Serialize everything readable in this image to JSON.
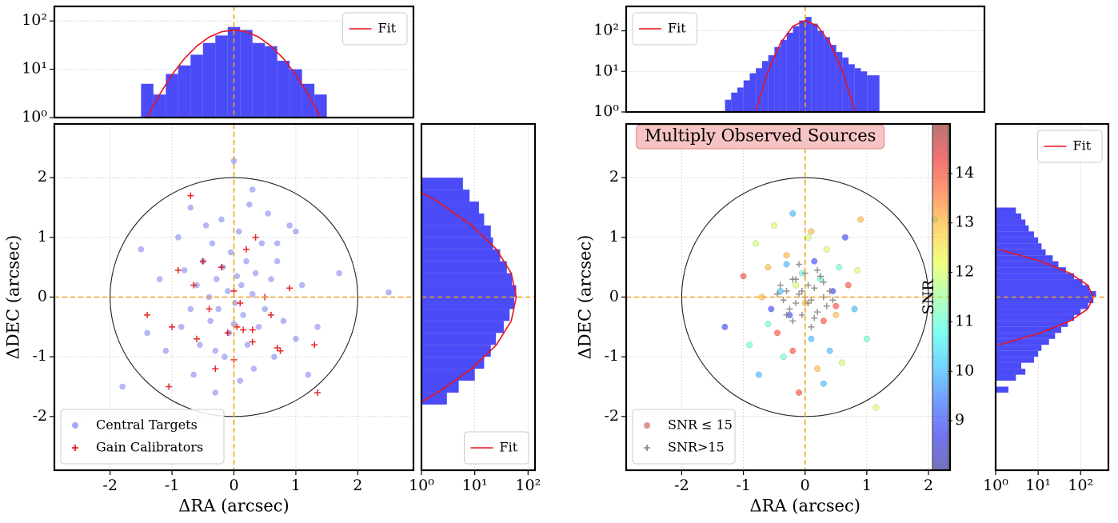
{
  "chart_data": [
    {
      "type": "histogram",
      "orientation": "vertical",
      "color": "#4b4bf7",
      "bins": [
        -1.5,
        -1.3,
        -1.1,
        -0.9,
        -0.7,
        -0.5,
        -0.3,
        -0.1,
        0.1,
        0.3,
        0.5,
        0.7,
        0.9,
        1.1,
        1.3,
        1.5
      ],
      "values": [
        5,
        3,
        8,
        12,
        20,
        35,
        50,
        75,
        65,
        35,
        30,
        15,
        10,
        5,
        3
      ],
      "series": [
        {
          "name": "Fit",
          "color": "#e8141c",
          "x": [
            -1.4,
            -1.2,
            -1.0,
            -0.8,
            -0.6,
            -0.4,
            -0.2,
            0,
            0.2,
            0.4,
            0.6,
            0.8,
            1.0,
            1.2,
            1.4
          ],
          "values": [
            1.0,
            3.0,
            7.7,
            16.6,
            30.2,
            46.3,
            59.7,
            65,
            59.7,
            46.3,
            30.2,
            16.6,
            7.7,
            3.0,
            1.0
          ]
        }
      ],
      "xlim": [
        -2.9,
        2.9
      ],
      "ylim": [
        1,
        200
      ],
      "y_log": true,
      "yticks": [
        {
          "value": 1,
          "label": "10⁰"
        },
        {
          "value": 10,
          "label": "10¹"
        },
        {
          "value": 100,
          "label": "10²"
        }
      ],
      "grid": true,
      "zero_lines": true,
      "legend": "upper right"
    },
    {
      "type": "scatter",
      "xlabel": "ΔRA (arcsec)",
      "ylabel": "ΔDEC (arcsec)",
      "series": [
        {
          "name": "Central Targets",
          "color": "#6b70ee",
          "marker": "o",
          "x": [
            -1.8,
            -1.5,
            -1.2,
            -1.1,
            -0.9,
            -0.85,
            -0.8,
            -0.7,
            -0.65,
            -0.6,
            -0.55,
            -0.5,
            -0.45,
            -0.4,
            -0.38,
            -0.35,
            -0.3,
            -0.28,
            -0.25,
            -0.2,
            -0.18,
            -0.15,
            -0.1,
            -0.08,
            -0.05,
            0,
            0.02,
            0.05,
            0.08,
            0.1,
            0.12,
            0.15,
            0.2,
            0.22,
            0.25,
            0.3,
            0.32,
            0.35,
            0.4,
            0.45,
            0.5,
            0.55,
            0.6,
            0.65,
            0.7,
            0.8,
            0.9,
            1.0,
            1.1,
            1.2,
            1.35,
            1.7,
            2.5,
            -0.3,
            0.3,
            -0.7,
            0.7,
            -1.4,
            1.0,
            0.0
          ],
          "values": [
            -1.5,
            0.8,
            0.3,
            -0.9,
            1.0,
            -0.5,
            0.45,
            1.5,
            -1.3,
            0.2,
            -0.8,
            0.6,
            1.2,
            0.0,
            -0.4,
            0.9,
            -1.6,
            0.3,
            -0.2,
            1.3,
            0.5,
            -1.0,
            0.1,
            -0.6,
            0.75,
            2.28,
            -0.1,
            0.35,
            1.1,
            -1.4,
            0.2,
            -0.3,
            0.6,
            -0.8,
            1.55,
            0.05,
            -1.2,
            0.4,
            -0.5,
            0.9,
            -0.2,
            1.4,
            0.3,
            -1.0,
            0.6,
            -0.4,
            1.2,
            -0.7,
            0.2,
            -1.3,
            -0.5,
            0.4,
            0.08,
            -0.9,
            1.8,
            -0.2,
            0.9,
            -0.6,
            1.1,
            -0.45
          ]
        },
        {
          "name": "Gain Calibrators",
          "color": "#e00000",
          "marker": "+",
          "x": [
            -1.4,
            -1.05,
            -1.0,
            -0.9,
            -0.7,
            -0.6,
            -0.5,
            -0.4,
            -0.3,
            -0.2,
            -0.1,
            0,
            0.05,
            0.1,
            0.15,
            0.2,
            0.3,
            0.35,
            0.5,
            0.6,
            0.7,
            0.75,
            0.9,
            1.35,
            1.3,
            -0.65,
            0.3,
            0.0
          ],
          "values": [
            -0.3,
            -1.5,
            -0.5,
            0.45,
            1.7,
            -0.7,
            0.6,
            -0.2,
            -1.2,
            0.5,
            -0.6,
            0.1,
            -0.5,
            -0.1,
            -0.55,
            0.8,
            -0.75,
            1.0,
            0.0,
            -0.3,
            -0.85,
            -0.9,
            0.15,
            -1.6,
            -0.8,
            0.2,
            -0.55,
            -1.05
          ]
        }
      ],
      "circle_radius": 2,
      "xlim": [
        -2.9,
        2.9
      ],
      "ylim": [
        -2.9,
        2.9
      ],
      "xticks": [
        -2,
        -1,
        0,
        1,
        2
      ],
      "yticks": [
        -2,
        -1,
        0,
        1,
        2
      ],
      "grid": true,
      "zero_lines": true,
      "legend": "lower left"
    },
    {
      "type": "histogram",
      "orientation": "horizontal",
      "color": "#4b4bf7",
      "bins": [
        -1.8,
        -1.6,
        -1.4,
        -1.2,
        -1.0,
        -0.8,
        -0.6,
        -0.4,
        -0.2,
        0,
        0.2,
        0.4,
        0.6,
        0.8,
        1.0,
        1.2,
        1.4,
        1.6,
        1.8,
        2.0
      ],
      "values": [
        3,
        5,
        10,
        15,
        20,
        25,
        35,
        45,
        55,
        60,
        50,
        40,
        30,
        22,
        20,
        15,
        12,
        8,
        6
      ],
      "series": [
        {
          "name": "Fit",
          "color": "#e8141c",
          "y": [
            -1.75,
            -1.6,
            -1.2,
            -0.8,
            -0.4,
            0,
            0.4,
            0.8,
            1.2,
            1.6,
            1.75
          ],
          "values": [
            1.0,
            2.0,
            8.8,
            25.5,
            48.4,
            60,
            48.4,
            25.5,
            8.8,
            2.0,
            1.0
          ]
        }
      ],
      "xlim": [
        1,
        135
      ],
      "x_log": true,
      "ylim": [
        -2.9,
        2.9
      ],
      "xticks": [
        {
          "value": 1,
          "label": "10⁰"
        },
        {
          "value": 10,
          "label": "10¹"
        },
        {
          "value": 100,
          "label": "10²"
        }
      ],
      "grid": true,
      "zero_lines": true,
      "legend": "lower right"
    },
    {
      "type": "histogram",
      "orientation": "vertical",
      "color": "#4b4bf7",
      "bins": [
        -1.3,
        -1.2,
        -1.1,
        -1.0,
        -0.9,
        -0.8,
        -0.7,
        -0.6,
        -0.5,
        -0.4,
        -0.3,
        -0.2,
        -0.1,
        0,
        0.1,
        0.2,
        0.3,
        0.4,
        0.5,
        0.6,
        0.7,
        0.8,
        0.9,
        1.0,
        1.1,
        1.2
      ],
      "values": [
        2,
        3,
        4,
        6,
        9,
        12,
        18,
        25,
        40,
        60,
        90,
        130,
        180,
        220,
        150,
        100,
        70,
        45,
        30,
        22,
        15,
        12,
        10,
        8,
        8
      ],
      "series": [
        {
          "name": "Fit",
          "color": "#e8141c",
          "x": [
            -0.8,
            -0.6,
            -0.4,
            -0.2,
            0,
            0.2,
            0.4,
            0.6,
            0.8
          ],
          "values": [
            1.1,
            10.3,
            50,
            131,
            180,
            131,
            50,
            10.3,
            1.1
          ]
        }
      ],
      "xlim": [
        -2.9,
        2.9
      ],
      "ylim": [
        1,
        400
      ],
      "y_log": true,
      "yticks": [
        {
          "value": 1,
          "label": "10⁰"
        },
        {
          "value": 10,
          "label": "10¹"
        },
        {
          "value": 100,
          "label": "10²"
        }
      ],
      "grid": true,
      "zero_lines": true,
      "legend": "upper left"
    },
    {
      "type": "scatter",
      "xlabel": "ΔRA (arcsec)",
      "ylabel": "ΔDEC (arcsec)",
      "annotation": "Multiply Observed Sources",
      "series": [
        {
          "name": "SNR ≤ 15",
          "color": "#c0504d",
          "marker": "o",
          "cmap": "jet",
          "x": [
            -1.3,
            -1.0,
            -0.9,
            -0.8,
            -0.75,
            -0.6,
            -0.55,
            -0.5,
            -0.45,
            -0.4,
            -0.35,
            -0.3,
            -0.25,
            -0.2,
            -0.15,
            -0.1,
            -0.05,
            0,
            0.05,
            0.1,
            0.15,
            0.2,
            0.25,
            0.3,
            0.35,
            0.4,
            0.45,
            0.5,
            0.55,
            0.6,
            0.7,
            0.8,
            0.9,
            1.0,
            1.15,
            2.1,
            -0.7,
            0.65,
            -0.2,
            0.3,
            0.85,
            -0.6,
            0.1,
            -0.3,
            0.5
          ],
          "values": [
            -0.5,
            0.35,
            -0.8,
            0.9,
            -1.3,
            0.5,
            -0.2,
            1.2,
            -0.6,
            0.1,
            -1.0,
            0.7,
            -0.3,
            1.4,
            0.2,
            -1.6,
            0.4,
            -0.1,
            1.0,
            -0.7,
            0.6,
            -1.2,
            0.3,
            -0.4,
            0.8,
            -0.9,
            0.1,
            -0.3,
            0.5,
            -1.1,
            0.2,
            -0.2,
            1.3,
            -0.7,
            -1.85,
            1.3,
            0.0,
            1.0,
            -0.9,
            -1.45,
            0.45,
            -0.45,
            1.1,
            0.55,
            -0.15
          ],
          "c": [
            9,
            14,
            11,
            12,
            10,
            13,
            9,
            12,
            14,
            10,
            11,
            13,
            9,
            10,
            12,
            14,
            11,
            13,
            12,
            10,
            9,
            13,
            11,
            14,
            12,
            10,
            9,
            13,
            11,
            12,
            14,
            10,
            13,
            11,
            12,
            11,
            13,
            9,
            14,
            10,
            12,
            11,
            13,
            10,
            14
          ]
        },
        {
          "name": "SNR>15",
          "color": "#808080",
          "marker": "+",
          "x": [
            -0.3,
            -0.25,
            -0.2,
            -0.15,
            -0.1,
            -0.05,
            0,
            0.05,
            0.1,
            0.15,
            0.2,
            0.25,
            0.3,
            0.35,
            -0.35,
            -0.4,
            0.4,
            -0.2,
            0.2,
            0,
            0.1,
            -0.1,
            0.05,
            -0.05,
            0.15,
            -0.15,
            0.3,
            -0.3,
            0.45,
            -0.45
          ],
          "values": [
            0.1,
            -0.2,
            0.3,
            -0.1,
            0.05,
            -0.3,
            0.0,
            0.2,
            -0.05,
            0.15,
            -0.25,
            0.35,
            0.0,
            -0.15,
            -0.05,
            0.2,
            0.1,
            -0.4,
            0.45,
            0.4,
            -0.5,
            0.55,
            -0.1,
            0.1,
            -0.35,
            0.3,
            0.25,
            -0.3,
            -0.05,
            0.05
          ]
        }
      ],
      "circle_radius": 2,
      "colorbar": {
        "label": "SNR",
        "clim": [
          8,
          15
        ],
        "ticks": [
          9,
          10,
          11,
          12,
          13,
          14
        ]
      },
      "xlim": [
        -2.9,
        2.35
      ],
      "ylim": [
        -2.9,
        2.9
      ],
      "xticks": [
        -2,
        -1,
        0,
        1,
        2
      ],
      "yticks": [
        -2,
        -1,
        0,
        1,
        2
      ],
      "grid": true,
      "zero_lines": true,
      "legend": "lower left"
    },
    {
      "type": "histogram",
      "orientation": "horizontal",
      "color": "#4b4bf7",
      "bins": [
        -1.6,
        -1.5,
        -1.4,
        -1.3,
        -1.2,
        -1.1,
        -1.0,
        -0.9,
        -0.8,
        -0.7,
        -0.6,
        -0.5,
        -0.4,
        -0.3,
        -0.2,
        -0.1,
        0,
        0.1,
        0.2,
        0.3,
        0.4,
        0.5,
        0.6,
        0.7,
        0.8,
        0.9,
        1.0,
        1.1,
        1.2,
        1.3,
        1.4,
        1.5
      ],
      "values": [
        2,
        1,
        3,
        5,
        4,
        8,
        10,
        12,
        18,
        25,
        35,
        50,
        70,
        100,
        150,
        200,
        230,
        160,
        110,
        70,
        45,
        30,
        22,
        15,
        12,
        10,
        8,
        6,
        5,
        4,
        3
      ],
      "series": [
        {
          "name": "Fit",
          "color": "#e8141c",
          "y": [
            -0.8,
            -0.6,
            -0.4,
            -0.2,
            0,
            0.2,
            0.4,
            0.6,
            0.8
          ],
          "values": [
            1.2,
            11.5,
            56,
            146,
            200,
            146,
            56,
            11.5,
            1.2
          ]
        }
      ],
      "xlim": [
        1,
        450
      ],
      "x_log": true,
      "ylim": [
        -2.9,
        2.9
      ],
      "xticks": [
        {
          "value": 1,
          "label": "10⁰"
        },
        {
          "value": 10,
          "label": "10¹"
        },
        {
          "value": 100,
          "label": "10²"
        }
      ],
      "grid": true,
      "zero_lines": true,
      "legend": "upper right"
    }
  ]
}
